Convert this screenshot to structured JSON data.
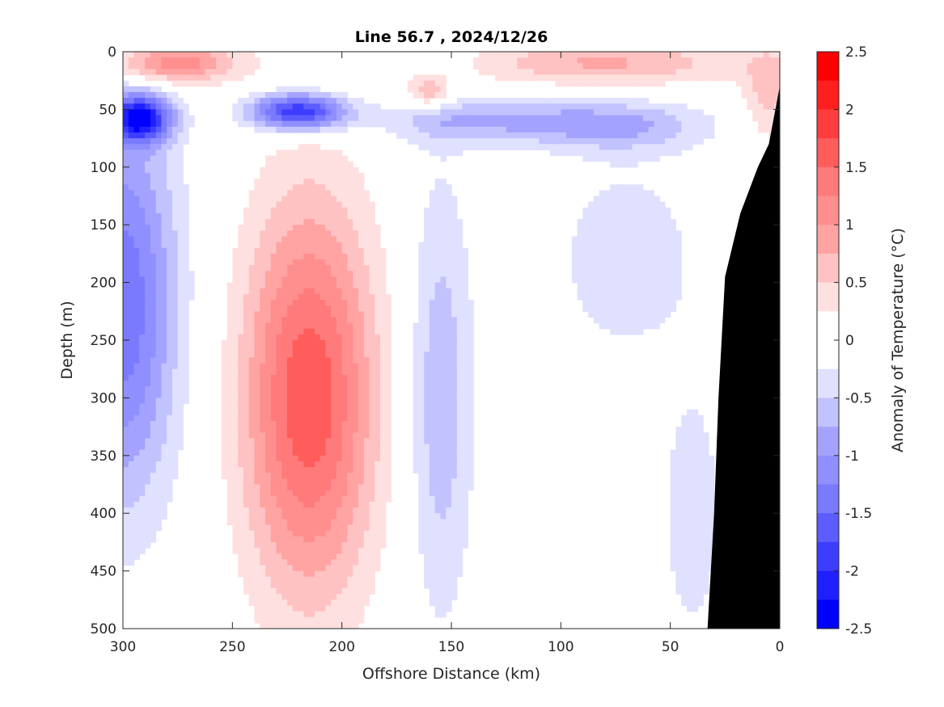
{
  "chart_data": {
    "type": "heatmap",
    "title": "Line 56.7 , 2024/12/26",
    "xlabel": "Offshore Distance (km)",
    "ylabel": "Depth (m)",
    "colorbar_label": "Anomaly of Temperature (°C)",
    "xlim": [
      300,
      0
    ],
    "ylim": [
      0,
      500
    ],
    "x_ticks": [
      300,
      250,
      200,
      150,
      100,
      50,
      0
    ],
    "x_tick_labels": [
      "300",
      "250",
      "200",
      "150",
      "100",
      "50",
      "0"
    ],
    "y_ticks": [
      0,
      50,
      100,
      150,
      200,
      250,
      300,
      350,
      400,
      450,
      500
    ],
    "y_tick_labels": [
      "0",
      "50",
      "100",
      "150",
      "200",
      "250",
      "300",
      "350",
      "400",
      "450",
      "500"
    ],
    "colorbar_ticks": [
      2.5,
      2,
      1.5,
      1,
      0.5,
      0,
      -0.5,
      -1,
      -1.5,
      -2,
      -2.5
    ],
    "colorbar_tick_labels": [
      "2.5",
      "2",
      "1.5",
      "1",
      "0.5",
      "0",
      "-0.5",
      "-1",
      "-1.5",
      "-2",
      "-2.5"
    ],
    "color_levels": [
      {
        "min": 2.25,
        "max": 2.5,
        "color": "#ff0000"
      },
      {
        "min": 2.0,
        "max": 2.25,
        "color": "#ff1f1f"
      },
      {
        "min": 1.75,
        "max": 2.0,
        "color": "#ff3d3d"
      },
      {
        "min": 1.5,
        "max": 1.75,
        "color": "#ff5c5c"
      },
      {
        "min": 1.25,
        "max": 1.5,
        "color": "#ff7a7a"
      },
      {
        "min": 1.0,
        "max": 1.25,
        "color": "#ff8f8f"
      },
      {
        "min": 0.75,
        "max": 1.0,
        "color": "#ffa3a3"
      },
      {
        "min": 0.5,
        "max": 0.75,
        "color": "#ffc2c2"
      },
      {
        "min": 0.25,
        "max": 0.5,
        "color": "#ffe0e0"
      },
      {
        "min": 0.0,
        "max": 0.25,
        "color": "#ffffff"
      },
      {
        "min": -0.25,
        "max": 0.0,
        "color": "#ffffff"
      },
      {
        "min": -0.5,
        "max": -0.25,
        "color": "#e0e0ff"
      },
      {
        "min": -0.75,
        "max": -0.5,
        "color": "#c2c2ff"
      },
      {
        "min": -1.0,
        "max": -0.75,
        "color": "#a3a3ff"
      },
      {
        "min": -1.25,
        "max": -1.0,
        "color": "#8f8fff"
      },
      {
        "min": -1.5,
        "max": -1.25,
        "color": "#7a7aff"
      },
      {
        "min": -1.75,
        "max": -1.5,
        "color": "#5c5cff"
      },
      {
        "min": -2.0,
        "max": -1.75,
        "color": "#3d3dff"
      },
      {
        "min": -2.25,
        "max": -2.0,
        "color": "#1f1fff"
      },
      {
        "min": -2.5,
        "max": -2.25,
        "color": "#0000ff"
      }
    ],
    "features": [
      {
        "name": "warm-surface-core-west",
        "type": "warm",
        "x": 278,
        "y": 10,
        "dx": 30,
        "dy": 18,
        "amp": 1.25
      },
      {
        "name": "warm-surface-near-150",
        "type": "warm",
        "x": 160,
        "y": 35,
        "dx": 10,
        "dy": 14,
        "amp": 0.8
      },
      {
        "name": "warm-surface-east",
        "type": "warm",
        "x": 80,
        "y": 10,
        "dx": 60,
        "dy": 20,
        "amp": 0.8
      },
      {
        "name": "warm-nearshore-surface",
        "type": "warm",
        "x": 5,
        "y": 35,
        "dx": 12,
        "dy": 45,
        "amp": 0.6
      },
      {
        "name": "cold-core-near-290",
        "type": "cold",
        "x": 292,
        "y": 58,
        "dx": 14,
        "dy": 20,
        "amp": -2.1
      },
      {
        "name": "cold-core-near-220",
        "type": "cold",
        "x": 220,
        "y": 52,
        "dx": 22,
        "dy": 16,
        "amp": -2.1
      },
      {
        "name": "cold-subsurface-band",
        "type": "cold",
        "x": 130,
        "y": 60,
        "dx": 55,
        "dy": 20,
        "amp": -0.75
      },
      {
        "name": "cold-band-east",
        "type": "cold",
        "x": 70,
        "y": 65,
        "dx": 40,
        "dy": 22,
        "amp": -0.6
      },
      {
        "name": "cold-western-boundary",
        "type": "cold",
        "x": 300,
        "y": 220,
        "dx": 25,
        "dy": 170,
        "amp": -1.45
      },
      {
        "name": "warm-deep-core",
        "type": "warm",
        "x": 215,
        "y": 300,
        "dx": 30,
        "dy": 170,
        "amp": 1.7
      },
      {
        "name": "cold-deep-near-155",
        "type": "cold",
        "x": 155,
        "y": 300,
        "dx": 15,
        "dy": 190,
        "amp": -0.7
      },
      {
        "name": "cold-deep-east",
        "type": "cold",
        "x": 70,
        "y": 180,
        "dx": 35,
        "dy": 90,
        "amp": -0.42
      },
      {
        "name": "cold-nearshore-deep",
        "type": "cold",
        "x": 40,
        "y": 400,
        "dx": 14,
        "dy": 110,
        "amp": -0.45
      }
    ],
    "bathymetry": [
      {
        "x": 0,
        "depth": 30
      },
      {
        "x": 5,
        "depth": 80
      },
      {
        "x": 10,
        "depth": 100
      },
      {
        "x": 18,
        "depth": 140
      },
      {
        "x": 25,
        "depth": 195
      },
      {
        "x": 28,
        "depth": 300
      },
      {
        "x": 30,
        "depth": 400
      },
      {
        "x": 33,
        "depth": 500
      }
    ]
  }
}
